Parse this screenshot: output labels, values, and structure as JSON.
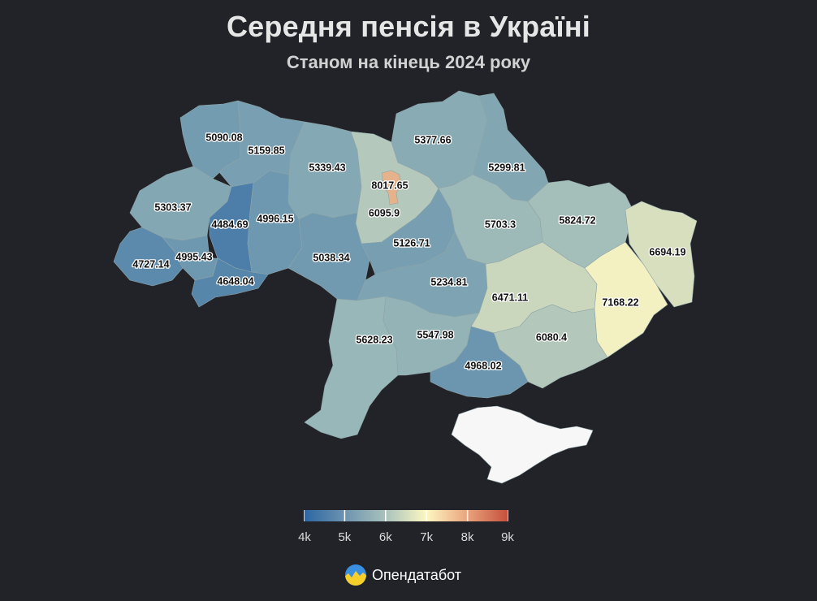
{
  "title": "Середня пенсія в Україні",
  "subtitle": "Станом на кінець 2024 року",
  "map_data": {
    "type": "choropleth",
    "unit": "грн",
    "regions": [
      {
        "label": "Волинська",
        "value": 5090.08
      },
      {
        "label": "Рівненська",
        "value": 5159.85
      },
      {
        "label": "Житомирська",
        "value": 5339.43
      },
      {
        "label": "м. Київ",
        "value": 8017.65
      },
      {
        "label": "Київська",
        "value": 6095.9
      },
      {
        "label": "Чернігівська",
        "value": 5377.66
      },
      {
        "label": "Сумська",
        "value": 5299.81
      },
      {
        "label": "Львівська",
        "value": 5303.37
      },
      {
        "label": "Тернопільська",
        "value": 4484.69
      },
      {
        "label": "Хмельницька",
        "value": 4996.15
      },
      {
        "label": "Закарпатська",
        "value": 4727.14
      },
      {
        "label": "Івано-Франківська",
        "value": 4995.43
      },
      {
        "label": "Чернівецька",
        "value": 4648.04
      },
      {
        "label": "Вінницька",
        "value": 5038.34
      },
      {
        "label": "Черкаська",
        "value": 5126.71
      },
      {
        "label": "Полтавська",
        "value": 5703.3
      },
      {
        "label": "Харківська",
        "value": 5824.72
      },
      {
        "label": "Луганська",
        "value": 6694.19
      },
      {
        "label": "Кіровоградська",
        "value": 5234.81
      },
      {
        "label": "Дніпропетровська",
        "value": 6471.11
      },
      {
        "label": "Донецька",
        "value": 7168.22
      },
      {
        "label": "Одеська",
        "value": 5628.23
      },
      {
        "label": "Миколаївська",
        "value": 5547.98
      },
      {
        "label": "Запорізька",
        "value": 6080.4
      },
      {
        "label": "Херсонська",
        "value": 4968.02
      },
      {
        "label": "Автономна Республіка Крим",
        "value": null
      }
    ],
    "colorscale": {
      "min": 4000,
      "max": 9000,
      "ticks": [
        "4k",
        "5k",
        "6k",
        "7k",
        "8k",
        "9k"
      ],
      "colors": [
        "#2b66a3",
        "#9bb9b8",
        "#fdf7c2",
        "#c54e3b"
      ],
      "no_data_color": "#f7f7f7"
    }
  },
  "brand": {
    "name": "Опендатабот"
  }
}
